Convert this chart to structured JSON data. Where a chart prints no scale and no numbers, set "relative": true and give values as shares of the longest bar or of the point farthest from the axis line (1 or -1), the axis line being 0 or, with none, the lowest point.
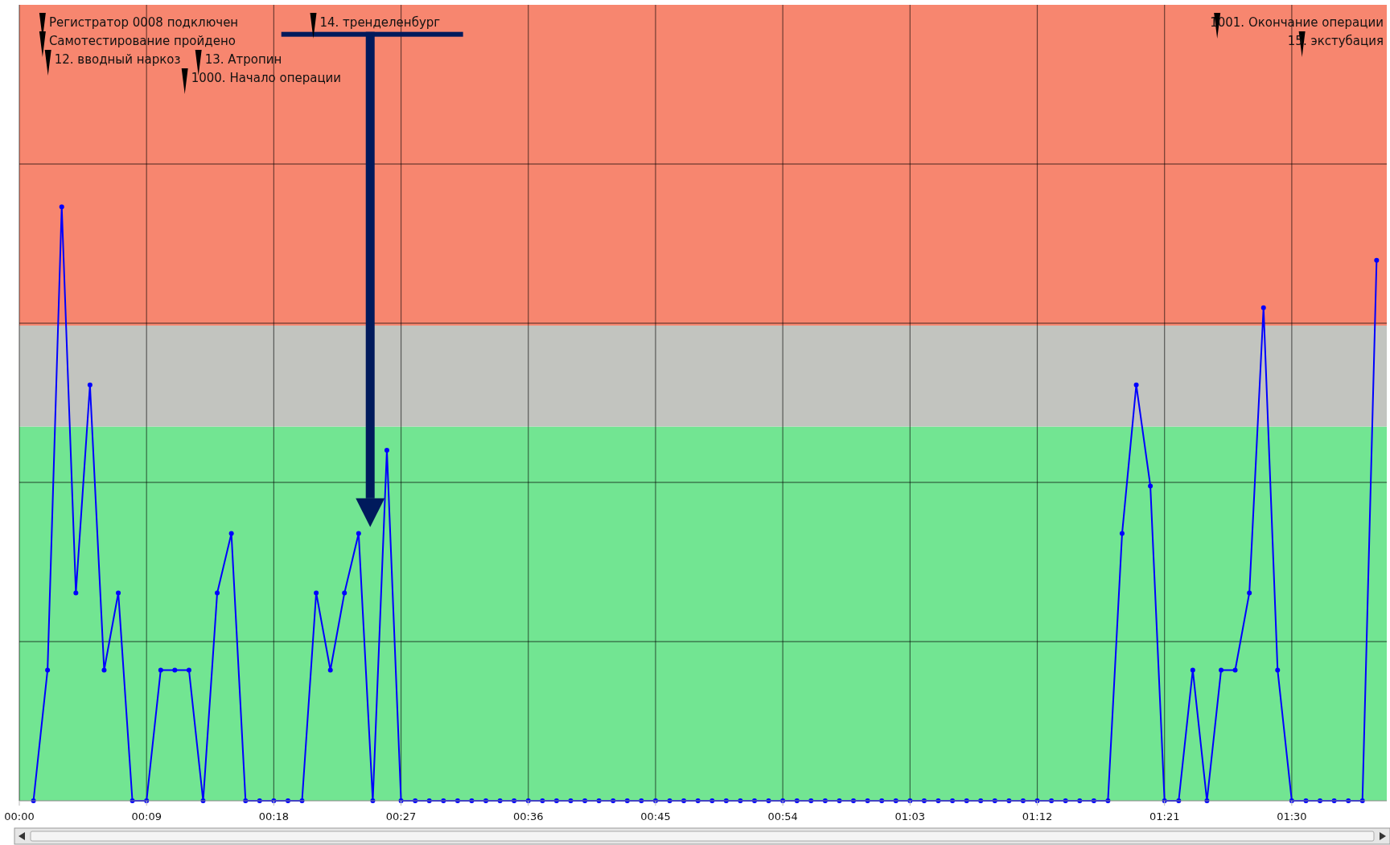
{
  "chart_data": {
    "type": "line",
    "relative": true,
    "tick_labels": "x",
    "grid": true,
    "marker": "circle",
    "line_style": "solid",
    "x": [
      0.0167,
      0.0333,
      0.05,
      0.0667,
      0.0833,
      0.1,
      0.1167,
      0.1333,
      0.15,
      0.1667,
      0.1833,
      0.2,
      0.2167,
      0.2333,
      0.25,
      0.2667,
      0.2833,
      0.3,
      0.3167,
      0.3333,
      0.35,
      0.3667,
      0.3833,
      0.4,
      0.4167,
      0.4333,
      0.45,
      0.4667,
      0.4833,
      0.5,
      0.5167,
      0.5333,
      0.55,
      0.5667,
      0.5833,
      0.6,
      0.6167,
      0.6333,
      0.65,
      0.6667,
      0.6833,
      0.7,
      0.7167,
      0.7333,
      0.75,
      0.7667,
      0.7833,
      0.8,
      0.8167,
      0.8333,
      0.85,
      0.8667,
      0.8833,
      0.9,
      0.9167,
      0.9333,
      0.95,
      0.9667,
      0.9833,
      1,
      1.0167,
      1.0333,
      1.05,
      1.0667,
      1.0833,
      1.1,
      1.1167,
      1.1333,
      1.15,
      1.1667,
      1.1833,
      1.2,
      1.2167,
      1.2333,
      1.25,
      1.2667,
      1.2833,
      1.3,
      1.3167,
      1.3333,
      1.35,
      1.3667,
      1.3833,
      1.4,
      1.4167,
      1.4333,
      1.45,
      1.4667,
      1.4833,
      1.5,
      1.5167,
      1.5333,
      1.55,
      1.5667,
      1.5833,
      1.6
    ],
    "series": [
      {
        "color": "#0000ff",
        "values": [
          0,
          0.22,
          1,
          0.35,
          0.7,
          0.22,
          0.35,
          0,
          0,
          0.22,
          0.22,
          0.22,
          0,
          0.35,
          0.45,
          0,
          0,
          0,
          0,
          0,
          0.35,
          0.22,
          0.35,
          0.45,
          0,
          0.59,
          0,
          0,
          0,
          0,
          0,
          0,
          0,
          0,
          0,
          0,
          0,
          0,
          0,
          0,
          0,
          0,
          0,
          0,
          0,
          0,
          0,
          0,
          0,
          0,
          0,
          0,
          0,
          0,
          0,
          0,
          0,
          0,
          0,
          0,
          0,
          0,
          0,
          0,
          0,
          0,
          0,
          0,
          0,
          0,
          0,
          0,
          0,
          0,
          0,
          0,
          0,
          0.45,
          0.7,
          0.53,
          0,
          0,
          0.22,
          0,
          0.22,
          0.22,
          0.35,
          0.83,
          0.22,
          0,
          0,
          0,
          0,
          0,
          0,
          0.91
        ]
      }
    ],
    "xlim": [
      0,
      1.612
    ],
    "xticks": [
      {
        "value": 0,
        "label": "00:00"
      },
      {
        "value": 0.15,
        "label": "00:09"
      },
      {
        "value": 0.3,
        "label": "00:18"
      },
      {
        "value": 0.45,
        "label": "00:27"
      },
      {
        "value": 0.6,
        "label": "00:36"
      },
      {
        "value": 0.75,
        "label": "00:45"
      },
      {
        "value": 0.9,
        "label": "00:54"
      },
      {
        "value": 1.05,
        "label": "01:03"
      },
      {
        "value": 1.2,
        "label": "01:12"
      },
      {
        "value": 1.35,
        "label": "01:21"
      },
      {
        "value": 1.5,
        "label": "01:30"
      }
    ],
    "bands": [
      {
        "axis": "y",
        "from": 0,
        "to": 0.63,
        "color": "#72e592"
      },
      {
        "axis": "y",
        "from": 0.63,
        "to": 0.8,
        "color": "#c2c4bf"
      },
      {
        "axis": "y",
        "from": 0.8,
        "to": 1.34,
        "color": "#f7866f"
      }
    ],
    "annotations": [
      "Регистратор 0008 подключен",
      "Самотестирование пройдено",
      "12. вводный наркоз",
      "13. Атропин",
      "1000. Начало операции",
      "14. тренделенбург",
      "1001. Окончание операции",
      "15. экстубация"
    ]
  }
}
